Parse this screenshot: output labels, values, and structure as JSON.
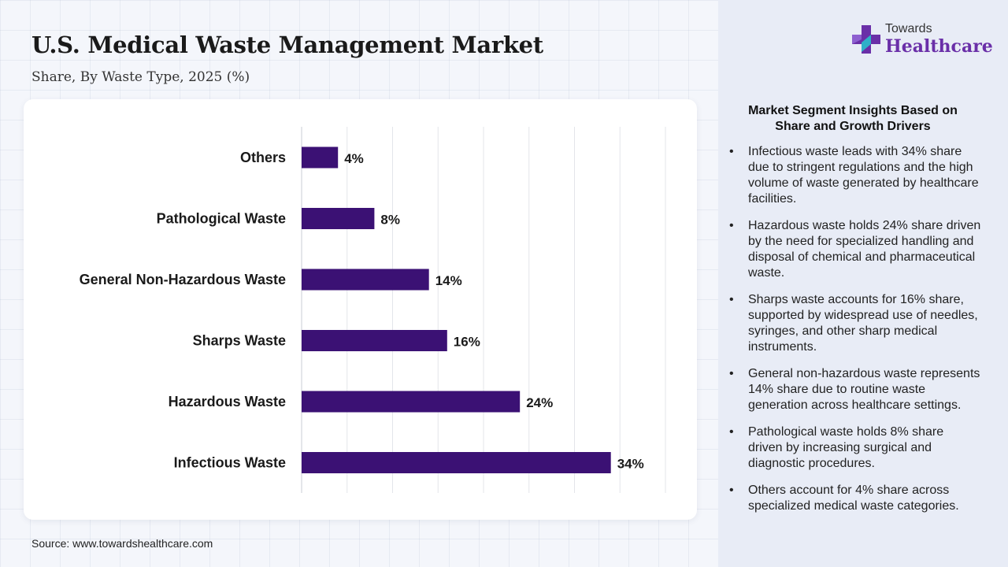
{
  "header": {
    "title": "U.S. Medical Waste Management Market",
    "subtitle": "Share, By Waste Type, 2025 (%)"
  },
  "logo": {
    "top_text": "Towards",
    "bottom_text": "Healthcare",
    "icon": "medical-cross-icon"
  },
  "source": "Source: www.towardshealthcare.com",
  "colors": {
    "bar": "#3b1174",
    "logo_accent": "#6a2fa8",
    "panel_bg": "#e8ecf6"
  },
  "insights": {
    "title_line1": "Market Segment Insights Based on",
    "title_line2": "Share and Growth Drivers",
    "items": [
      "Infectious waste leads with 34% share due to stringent regulations and the high volume of waste generated by healthcare facilities.",
      "Hazardous waste holds 24% share driven by the need for specialized handling and disposal of chemical and pharmaceutical waste.",
      "Sharps waste accounts for 16% share, supported by widespread use of needles, syringes, and other sharp medical instruments.",
      "General non-hazardous waste represents 14% share due to routine waste generation across healthcare settings.",
      "Pathological waste holds 8% share driven by increasing surgical and diagnostic procedures.",
      "Others account for 4% share across specialized medical waste categories."
    ]
  },
  "chart_data": {
    "type": "bar",
    "orientation": "horizontal",
    "categories": [
      "Others",
      "Pathological Waste",
      "General Non-Hazardous Waste",
      "Sharps Waste",
      "Hazardous Waste",
      "Infectious Waste"
    ],
    "values": [
      4,
      8,
      14,
      16,
      24,
      34
    ],
    "data_labels": [
      "4%",
      "8%",
      "14%",
      "16%",
      "24%",
      "34%"
    ],
    "unit": "%",
    "xlim": [
      0,
      40
    ],
    "grid": true,
    "legend": false
  }
}
